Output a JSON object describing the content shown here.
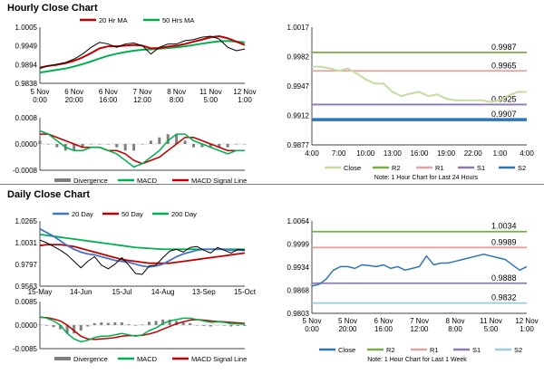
{
  "sections": {
    "hourly_title": "Hourly Close Chart",
    "daily_title": "Daily Close Chart"
  },
  "colors": {
    "price": "#000000",
    "ma_short": "#c00000",
    "ma_long": "#00b050",
    "ma20_daily": "#4472c4",
    "macd": "#00b050",
    "signal": "#c00000",
    "divergence": "#7f7f7f",
    "close_hourly": "#c3dca0",
    "close_weekly": "#2e75b6",
    "r2": "#76b041",
    "r1": "#e6a0a0",
    "s1": "#8e79b0",
    "s2": "#9dcfd9",
    "s2_hourly": "#2e75b6"
  },
  "chart_data": [
    {
      "id": "hourly-price",
      "type": "line",
      "legend": [
        "20 Hr MA",
        "50 Hrs MA"
      ],
      "y_ticks": [
        "1.0005",
        "0.9949",
        "0.9894",
        "0.9838"
      ],
      "ylim": [
        0.9838,
        1.0005
      ],
      "x_ticks": [
        "5 Nov\n0:00",
        "6 Nov\n20:00",
        "6 Nov\n16:00",
        "7 Nov\n12:00",
        "8 Nov\n8:00",
        "11 Nov\n5:00",
        "12 Nov\n1:00"
      ],
      "x": [
        0,
        1,
        2,
        3,
        4,
        5,
        6,
        7,
        8,
        9,
        10,
        11,
        12,
        13,
        14,
        15,
        16,
        17,
        18,
        19,
        20,
        21,
        22,
        23,
        24
      ],
      "series": [
        {
          "name": "",
          "values": [
            0.9882,
            0.989,
            0.9895,
            0.99,
            0.991,
            0.9925,
            0.9945,
            0.996,
            0.9955,
            0.9945,
            0.9955,
            0.9958,
            0.995,
            0.9925,
            0.9945,
            0.9955,
            0.9955,
            0.9965,
            0.9968,
            0.9975,
            0.9978,
            0.997,
            0.9945,
            0.9935,
            0.994
          ]
        },
        {
          "name": "20 Hr MA",
          "values": [
            0.9885,
            0.989,
            0.9893,
            0.9898,
            0.9905,
            0.9915,
            0.9928,
            0.9942,
            0.9948,
            0.9948,
            0.995,
            0.9952,
            0.995,
            0.9942,
            0.9943,
            0.9947,
            0.995,
            0.9955,
            0.9962,
            0.9968,
            0.9975,
            0.9978,
            0.9972,
            0.9962,
            0.9952
          ]
        },
        {
          "name": "50 Hrs MA",
          "values": [
            0.987,
            0.9874,
            0.9878,
            0.9882,
            0.9888,
            0.9895,
            0.9903,
            0.9912,
            0.992,
            0.9926,
            0.9931,
            0.9935,
            0.9938,
            0.9939,
            0.9941,
            0.9943,
            0.9945,
            0.9948,
            0.9952,
            0.9956,
            0.996,
            0.9963,
            0.9964,
            0.9962,
            0.996
          ]
        }
      ]
    },
    {
      "id": "hourly-macd",
      "type": "line",
      "legend": [
        "Divergence",
        "MACD",
        "MACD Signal Line"
      ],
      "y_ticks": [
        "0.0008",
        "0.0000",
        "-0.0008"
      ],
      "ylim": [
        -0.0008,
        0.0008
      ],
      "x": [
        0,
        1,
        2,
        3,
        4,
        5,
        6,
        7,
        8,
        9,
        10,
        11,
        12,
        13,
        14,
        15,
        16,
        17,
        18,
        19,
        20,
        21,
        22,
        23,
        24
      ],
      "series": [
        {
          "name": "MACD",
          "values": [
            0.0004,
            0.0003,
            0.0001,
            -0.0001,
            -0.0002,
            -0.0002,
            -0.0001,
            -0.0001,
            -0.0002,
            -0.0003,
            -0.0005,
            -0.0007,
            -0.0006,
            -0.0004,
            -0.0002,
            0.0001,
            0.0003,
            0.0003,
            0.0001,
            0.0,
            -0.0001,
            -0.0002,
            -0.0003,
            -0.0002,
            -0.0002
          ]
        },
        {
          "name": "MACD Signal Line",
          "values": [
            0.0003,
            0.0003,
            0.0002,
            0.0001,
            0.0,
            -0.0001,
            -0.0001,
            -0.0001,
            -0.0002,
            -0.0002,
            -0.0003,
            -0.0005,
            -0.0006,
            -0.0005,
            -0.0004,
            -0.0002,
            0.0,
            0.0002,
            0.0002,
            0.0001,
            0.0,
            -0.0001,
            -0.0002,
            -0.0002,
            -0.0002
          ]
        },
        {
          "name": "Divergence",
          "values": [
            0.0001,
            0.0,
            -0.0001,
            -0.0002,
            -0.0002,
            -0.0001,
            0.0,
            0.0,
            0.0,
            -0.0001,
            -0.0002,
            -0.0002,
            0.0,
            0.0001,
            0.0002,
            0.0003,
            0.0003,
            0.0001,
            -0.0001,
            -0.0001,
            -0.0001,
            -0.0001,
            -0.0001,
            0.0,
            0.0
          ]
        }
      ]
    },
    {
      "id": "hourly-levels",
      "type": "line",
      "y_ticks": [
        "1.0017",
        "0.9982",
        "0.9947",
        "0.9912",
        "0.9877"
      ],
      "ylim": [
        0.9877,
        1.0017
      ],
      "x_ticks": [
        "4:00",
        "7:00",
        "10:00",
        "13:00",
        "16:00",
        "19:00",
        "22:00",
        "1:00",
        "4:00"
      ],
      "levels": [
        {
          "name": "R2",
          "value": 0.9987,
          "label": "0.9987"
        },
        {
          "name": "R1",
          "value": 0.9965,
          "label": "0.9965"
        },
        {
          "name": "S1",
          "value": 0.9925,
          "label": "0.9925"
        },
        {
          "name": "S2",
          "value": 0.9907,
          "label": "0.9907"
        }
      ],
      "x": [
        0,
        1,
        2,
        3,
        4,
        5,
        6,
        7,
        8,
        9,
        10,
        11,
        12,
        13,
        14,
        15,
        16,
        17,
        18,
        19,
        20,
        21,
        22,
        23,
        24
      ],
      "series": [
        {
          "name": "Close",
          "values": [
            0.997,
            0.997,
            0.9968,
            0.9965,
            0.9968,
            0.9962,
            0.9955,
            0.995,
            0.995,
            0.994,
            0.9935,
            0.9938,
            0.994,
            0.9935,
            0.9937,
            0.9932,
            0.993,
            0.993,
            0.993,
            0.993,
            0.9928,
            0.993,
            0.9936,
            0.994,
            0.994
          ]
        }
      ],
      "legend": [
        "Close",
        "R2",
        "R1",
        "S1",
        "S2"
      ],
      "note": "Note: 1 Hour Chart for Last 24 Hours"
    },
    {
      "id": "daily-price",
      "type": "line",
      "legend": [
        "20 Day",
        "50 Day",
        "200 Day"
      ],
      "y_ticks": [
        "1.0265",
        "1.0031",
        "0.9797",
        "0.9563"
      ],
      "ylim": [
        0.9563,
        1.0265
      ],
      "x_ticks": [
        "15-May",
        "14-Jun",
        "15-Jul",
        "14-Aug",
        "13-Sep",
        "15-Oct"
      ],
      "x": [
        0,
        1,
        2,
        3,
        4,
        5,
        6,
        7,
        8,
        9,
        10,
        11,
        12,
        13,
        14,
        15,
        16,
        17,
        18,
        19,
        20,
        21,
        22,
        23,
        24,
        25,
        26,
        27,
        28,
        29,
        30
      ],
      "series": [
        {
          "name": "",
          "values": [
            1.006,
            1.003,
            0.999,
            0.995,
            0.99,
            0.983,
            0.976,
            0.983,
            0.988,
            0.979,
            0.975,
            0.98,
            0.987,
            0.979,
            0.97,
            0.969,
            0.978,
            0.979,
            0.987,
            0.994,
            0.996,
            0.993,
            0.998,
            0.999,
            0.995,
            0.992,
            0.998,
            0.995,
            0.992,
            0.996,
            0.995
          ]
        },
        {
          "name": "20 Day",
          "values": [
            1.018,
            1.014,
            1.01,
            1.005,
            1.0,
            0.996,
            0.993,
            0.991,
            0.99,
            0.988,
            0.986,
            0.984,
            0.983,
            0.982,
            0.98,
            0.978,
            0.977,
            0.978,
            0.98,
            0.984,
            0.988,
            0.991,
            0.993,
            0.995,
            0.996,
            0.996,
            0.996,
            0.996,
            0.995,
            0.995,
            0.995
          ]
        },
        {
          "name": "50 Day",
          "values": [
            1.0,
            1.001,
            1.001,
            1.001,
            1.0,
            0.999,
            0.997,
            0.995,
            0.993,
            0.991,
            0.989,
            0.987,
            0.985,
            0.984,
            0.983,
            0.982,
            0.981,
            0.981,
            0.981,
            0.981,
            0.982,
            0.983,
            0.984,
            0.985,
            0.986,
            0.987,
            0.988,
            0.989,
            0.99,
            0.991,
            0.992
          ]
        },
        {
          "name": "200 Day",
          "values": [
            1.012,
            1.011,
            1.01,
            1.009,
            1.008,
            1.007,
            1.006,
            1.005,
            1.004,
            1.003,
            1.002,
            1.001,
            1.0,
            0.999,
            0.998,
            0.9975,
            0.997,
            0.9965,
            0.996,
            0.996,
            0.996,
            0.996,
            0.996,
            0.996,
            0.996,
            0.996,
            0.996,
            0.996,
            0.996,
            0.996,
            0.996
          ]
        }
      ]
    },
    {
      "id": "daily-macd",
      "type": "line",
      "legend": [
        "Divergence",
        "MACD",
        "MACD Signal Line"
      ],
      "y_ticks": [
        "0.0085",
        "0.0000",
        "-0.0085"
      ],
      "ylim": [
        -0.0085,
        0.0085
      ],
      "x": [
        0,
        1,
        2,
        3,
        4,
        5,
        6,
        7,
        8,
        9,
        10,
        11,
        12,
        13,
        14,
        15,
        16,
        17,
        18,
        19,
        20,
        21,
        22,
        23,
        24,
        25,
        26,
        27,
        28,
        29,
        30
      ],
      "series": [
        {
          "name": "MACD",
          "values": [
            0.003,
            0.0025,
            0.0015,
            0.0,
            -0.003,
            -0.005,
            -0.006,
            -0.0055,
            -0.0045,
            -0.004,
            -0.004,
            -0.0035,
            -0.003,
            -0.0035,
            -0.004,
            -0.0035,
            -0.002,
            -0.001,
            0.0005,
            0.0015,
            0.002,
            0.0025,
            0.0025,
            0.002,
            0.0015,
            0.001,
            0.0012,
            0.001,
            0.0005,
            0.0005,
            0.0003
          ]
        },
        {
          "name": "MACD Signal Line",
          "values": [
            0.0028,
            0.0027,
            0.0022,
            0.0015,
            0.0,
            -0.002,
            -0.004,
            -0.005,
            -0.0052,
            -0.005,
            -0.0048,
            -0.0045,
            -0.004,
            -0.0038,
            -0.0038,
            -0.0037,
            -0.0032,
            -0.0025,
            -0.0015,
            -0.0005,
            0.0005,
            0.0012,
            0.0018,
            0.002,
            0.0018,
            0.0015,
            0.0013,
            0.0012,
            0.001,
            0.0008,
            0.0006
          ]
        },
        {
          "name": "Divergence",
          "values": [
            0.0002,
            -0.0002,
            -0.0007,
            -0.0015,
            -0.003,
            -0.003,
            -0.002,
            -0.0005,
            0.0007,
            0.001,
            0.0008,
            0.001,
            0.001,
            0.0003,
            -0.0002,
            0.0002,
            0.0012,
            0.0015,
            0.002,
            0.002,
            0.0015,
            0.0013,
            0.0007,
            0.0,
            -0.0003,
            -0.0005,
            -0.0001,
            -0.0002,
            -0.0005,
            -0.0003,
            -0.0003
          ]
        }
      ]
    },
    {
      "id": "weekly-levels",
      "type": "line",
      "y_ticks": [
        "1.0064",
        "0.9999",
        "0.9934",
        "0.9868",
        "0.9803"
      ],
      "ylim": [
        0.9803,
        1.0064
      ],
      "x_ticks": [
        "5 Nov\n0:00",
        "5 Nov\n20:00",
        "6 Nov\n16:00",
        "7 Nov\n12:00",
        "8 Nov\n8:00",
        "11 Nov\n5:00",
        "12 Nov\n1:00"
      ],
      "levels": [
        {
          "name": "R2",
          "value": 1.0034,
          "label": "1.0034"
        },
        {
          "name": "R1",
          "value": 0.9989,
          "label": "0.9989"
        },
        {
          "name": "S1",
          "value": 0.9888,
          "label": "0.9888"
        },
        {
          "name": "S2",
          "value": 0.9832,
          "label": "0.9832"
        }
      ],
      "x": [
        0,
        1,
        2,
        3,
        4,
        5,
        6,
        7,
        8,
        9,
        10,
        11,
        12,
        13,
        14,
        15,
        16,
        17,
        18,
        19,
        20,
        21,
        22,
        23,
        24,
        25,
        26,
        27,
        28,
        29,
        30
      ],
      "series": [
        {
          "name": "Close",
          "values": [
            0.988,
            0.9885,
            0.99,
            0.9925,
            0.9935,
            0.9935,
            0.993,
            0.994,
            0.9938,
            0.9935,
            0.994,
            0.993,
            0.9935,
            0.9925,
            0.993,
            0.9935,
            0.9965,
            0.994,
            0.9945,
            0.9945,
            0.995,
            0.9955,
            0.996,
            0.9965,
            0.997,
            0.9965,
            0.996,
            0.9955,
            0.994,
            0.9925,
            0.9935
          ]
        }
      ],
      "legend": [
        "Close",
        "R2",
        "R1",
        "S1",
        "S2"
      ],
      "note": "Note: 1 Hour Chart for Last 1 Week"
    }
  ]
}
